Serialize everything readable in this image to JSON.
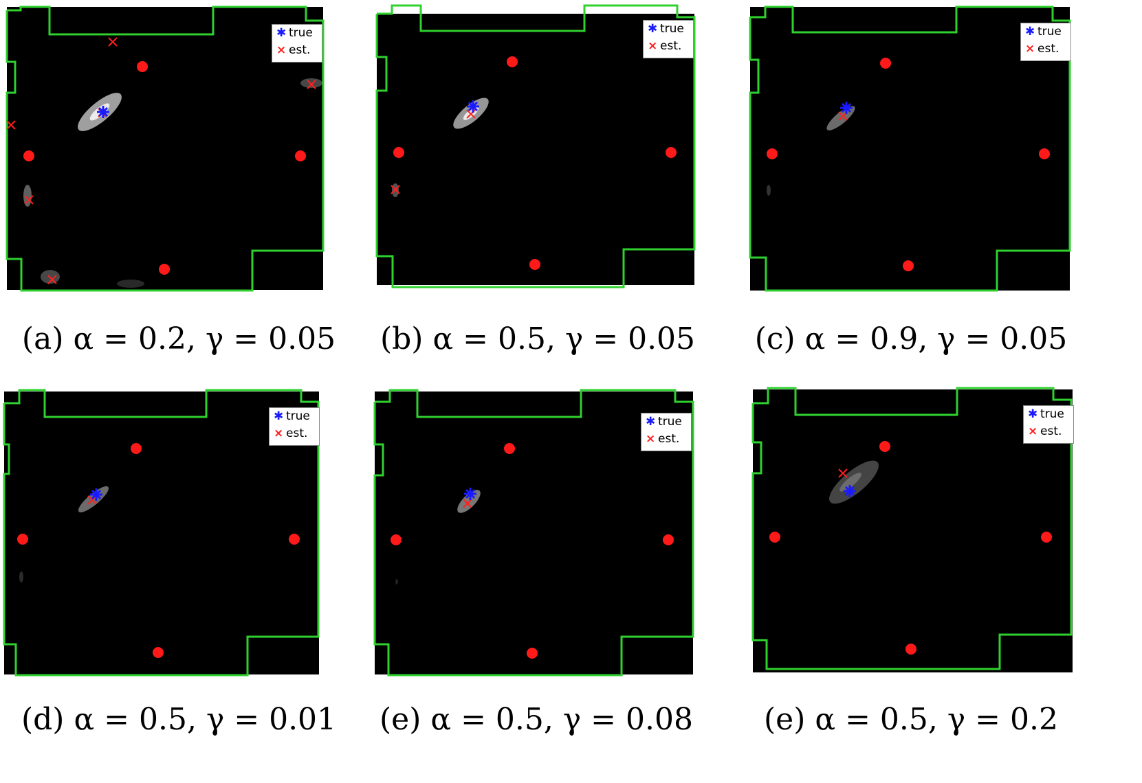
{
  "panels": [
    {
      "caption": "(a) α = 0.2, γ = 0.05"
    },
    {
      "caption": "(b) α = 0.5, γ = 0.05"
    },
    {
      "caption": "(c) α = 0.9, γ = 0.05"
    },
    {
      "caption": "(d) α = 0.5, γ = 0.01"
    },
    {
      "caption": "(e) α = 0.5, γ = 0.08"
    },
    {
      "caption": "(e) α = 0.5, γ = 0.2"
    }
  ],
  "legend": {
    "true_label": "true",
    "est_label": "est."
  },
  "colors": {
    "background": "#000000",
    "boundary": "#2fd12f",
    "anchor": "#ff1a1a",
    "true": "#1a1aff",
    "est": "#ff2020"
  }
}
